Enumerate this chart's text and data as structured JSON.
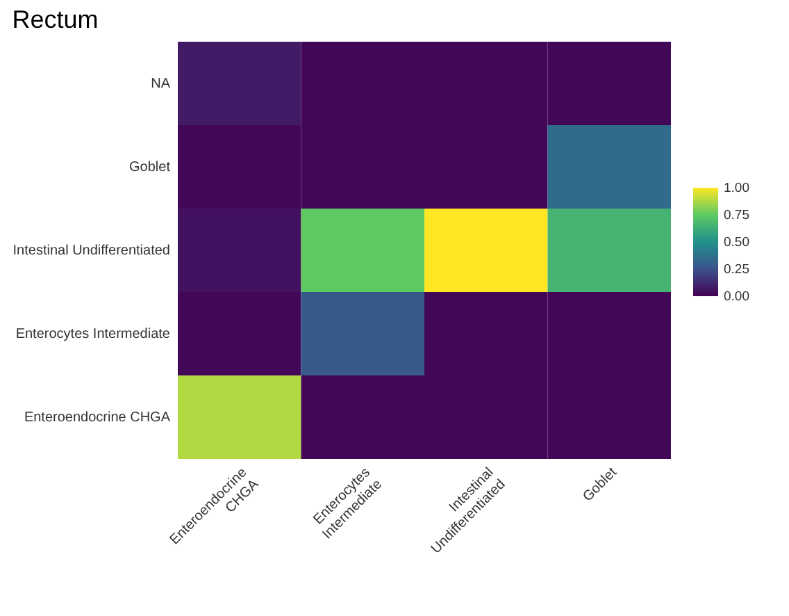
{
  "chart_data": {
    "type": "heatmap",
    "title": "Rectum",
    "categories": [
      "Enteroendocrine CHGA",
      "Enterocytes Intermediate",
      "Intestinal Undifferentiated",
      "Goblet"
    ],
    "y_categories": [
      "NA",
      "Goblet",
      "Intestinal Undifferentiated",
      "Enterocytes Intermediate",
      "Enteroendocrine CHGA"
    ],
    "cells": [
      [
        0.08,
        0.02,
        0.02,
        0.02
      ],
      [
        0.02,
        0.02,
        0.02,
        0.35
      ],
      [
        0.05,
        0.75,
        1.0,
        0.65
      ],
      [
        0.02,
        0.28,
        0.02,
        0.02
      ],
      [
        0.88,
        0.02,
        0.02,
        0.02
      ]
    ],
    "clim": [
      0,
      1
    ],
    "cticks": [
      {
        "value": 0,
        "label": "0.00"
      },
      {
        "value": 0.25,
        "label": "0.25"
      },
      {
        "value": 0.5,
        "label": "0.50"
      },
      {
        "value": 0.75,
        "label": "0.75"
      },
      {
        "value": 1,
        "label": "1.00"
      }
    ]
  }
}
